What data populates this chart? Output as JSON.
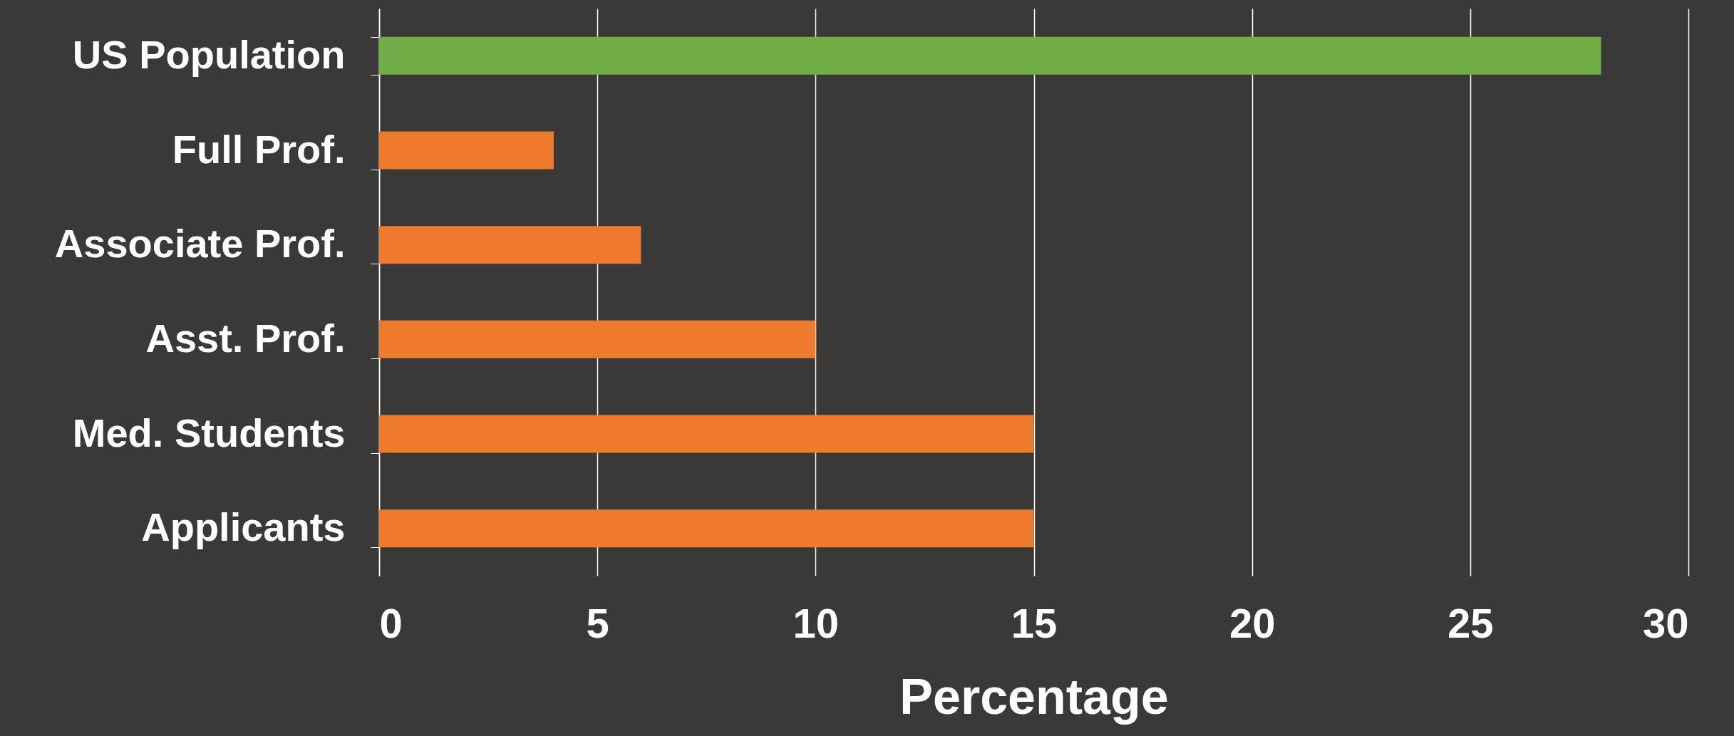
{
  "chart_data": {
    "type": "bar",
    "orientation": "horizontal",
    "categories": [
      "US Population",
      "Full Prof.",
      "Associate Prof.",
      "Asst. Prof.",
      "Med. Students",
      "Applicants"
    ],
    "values": [
      28,
      4,
      6,
      10,
      15,
      15
    ],
    "colors": [
      "#70ad47",
      "#ee7a2e",
      "#ee7a2e",
      "#ee7a2e",
      "#ee7a2e",
      "#ee7a2e"
    ],
    "xlabel": "Percentage",
    "xlim": [
      0,
      30
    ],
    "xticks": [
      0,
      5,
      10,
      15,
      20,
      25,
      30
    ],
    "grid": "x"
  }
}
